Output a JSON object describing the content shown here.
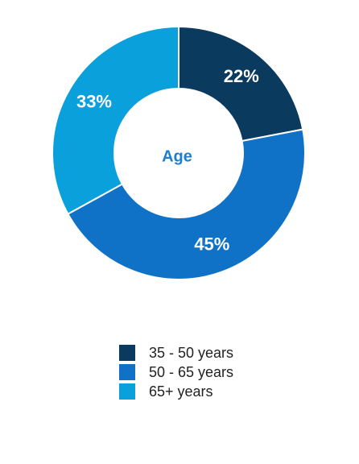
{
  "chart_data": {
    "type": "donut",
    "center_label": "Age",
    "categories": [
      "35 - 50 years",
      "50 - 65 years",
      "65+ years"
    ],
    "values": [
      22,
      45,
      33
    ],
    "value_labels": [
      "22%",
      "45%",
      "33%"
    ],
    "colors": [
      "#0b3a5f",
      "#0f72c6",
      "#0aa0dc"
    ]
  }
}
